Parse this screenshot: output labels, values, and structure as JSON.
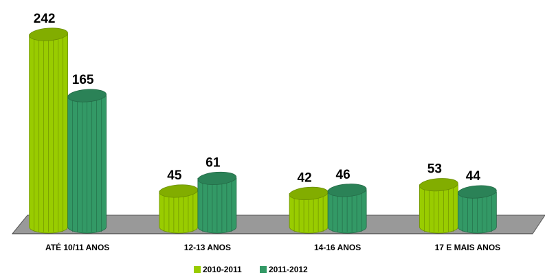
{
  "chart_data": {
    "type": "bar",
    "categories": [
      "ATÉ 10/11 ANOS",
      "12-13 ANOS",
      "14-16 ANOS",
      "17 E MAIS ANOS"
    ],
    "series": [
      {
        "name": "2010-2011",
        "color": "#99cc00",
        "values": [
          242,
          45,
          42,
          53
        ]
      },
      {
        "name": "2011-2012",
        "color": "#339966",
        "values": [
          165,
          61,
          46,
          44
        ]
      }
    ]
  }
}
